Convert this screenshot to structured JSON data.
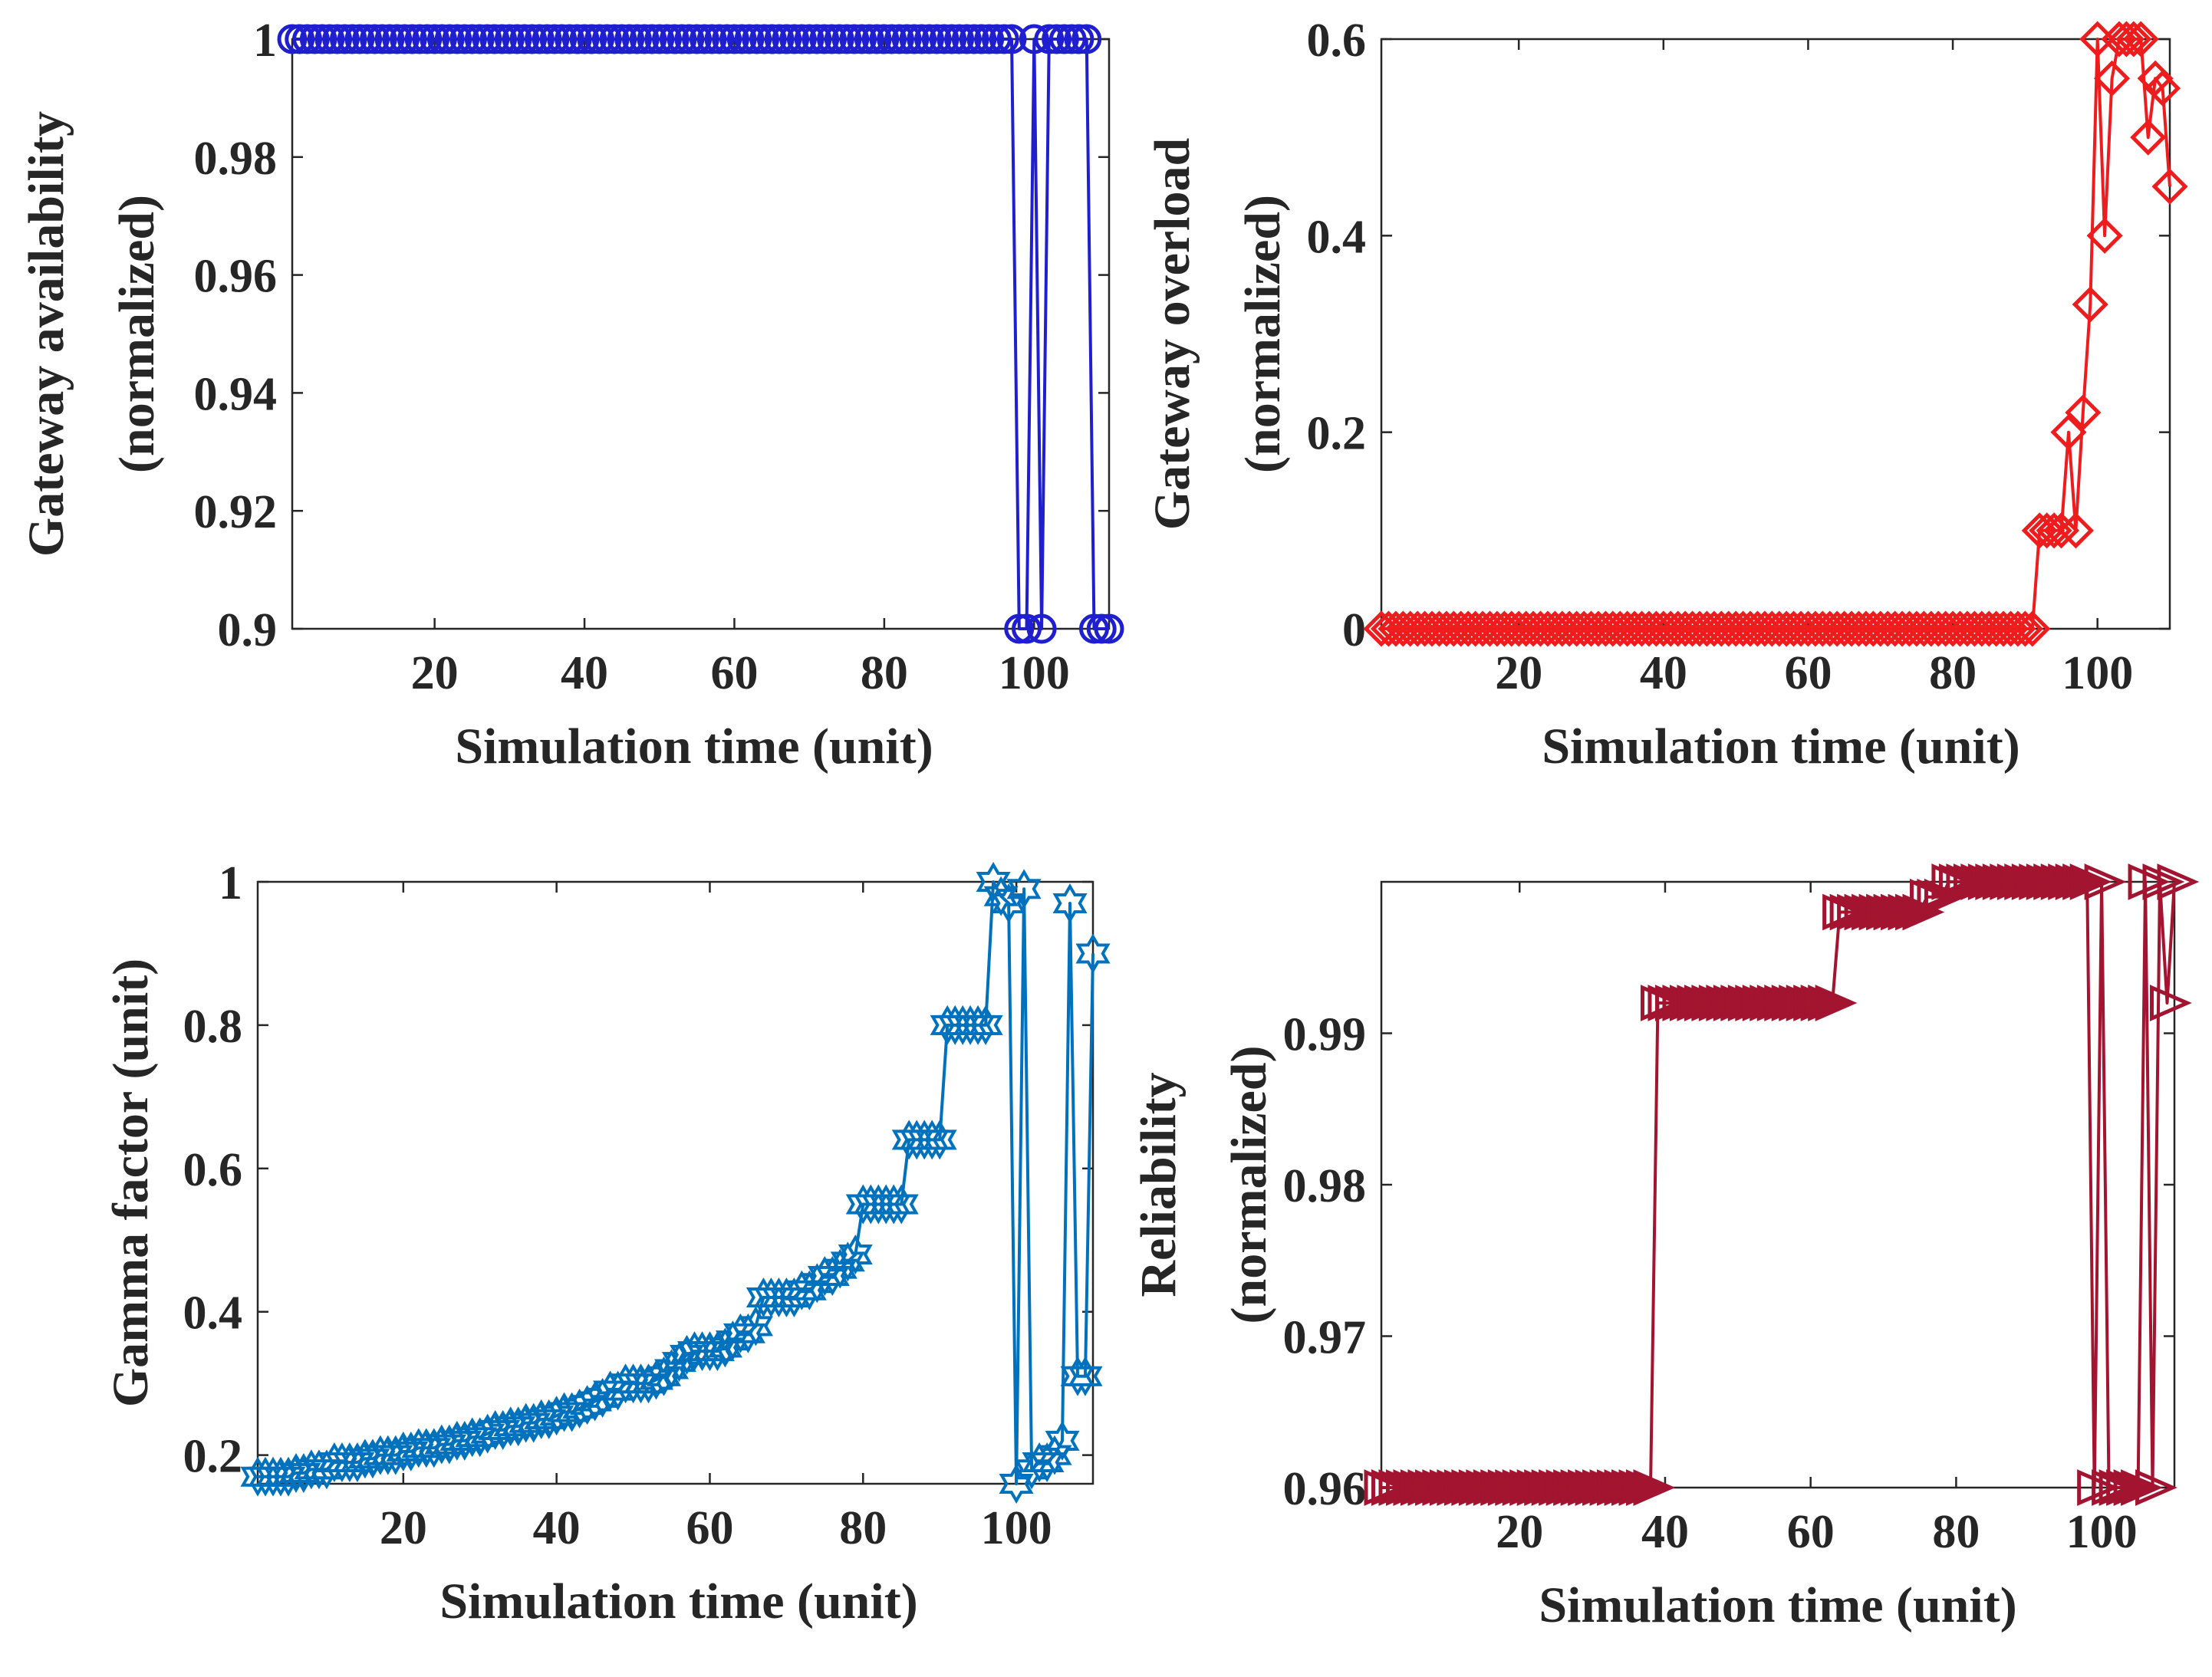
{
  "chart_data": [
    {
      "type": "line",
      "marker": "circle",
      "xlabel": "Simulation time (unit)",
      "ylabel": [
        "Gateway availability",
        "(normalized)"
      ],
      "xlim": [
        1,
        110
      ],
      "ylim": [
        0.9,
        1.0
      ],
      "xticks": [
        20,
        40,
        60,
        80,
        100
      ],
      "xtick_labels": [
        "20",
        "40",
        "60",
        "80",
        "100"
      ],
      "yticks": [
        0.9,
        0.92,
        0.94,
        0.96,
        0.98,
        1.0
      ],
      "ytick_labels": [
        "0.9",
        "0.92",
        "0.94",
        "0.96",
        "0.98",
        "1"
      ],
      "grid": false,
      "series": [
        {
          "color": "#1f1fcf",
          "x": [
            1,
            2,
            3,
            4,
            5,
            6,
            7,
            8,
            9,
            10,
            11,
            12,
            13,
            14,
            15,
            16,
            17,
            18,
            19,
            20,
            21,
            22,
            23,
            24,
            25,
            26,
            27,
            28,
            29,
            30,
            31,
            32,
            33,
            34,
            35,
            36,
            37,
            38,
            39,
            40,
            41,
            42,
            43,
            44,
            45,
            46,
            47,
            48,
            49,
            50,
            51,
            52,
            53,
            54,
            55,
            56,
            57,
            58,
            59,
            60,
            61,
            62,
            63,
            64,
            65,
            66,
            67,
            68,
            69,
            70,
            71,
            72,
            73,
            74,
            75,
            76,
            77,
            78,
            79,
            80,
            81,
            82,
            83,
            84,
            85,
            86,
            87,
            88,
            89,
            90,
            91,
            92,
            93,
            94,
            95,
            96,
            97,
            98,
            99,
            100,
            101,
            102,
            103,
            104,
            105,
            106,
            107,
            108,
            109,
            110
          ],
          "y": [
            1,
            1,
            1,
            1,
            1,
            1,
            1,
            1,
            1,
            1,
            1,
            1,
            1,
            1,
            1,
            1,
            1,
            1,
            1,
            1,
            1,
            1,
            1,
            1,
            1,
            1,
            1,
            1,
            1,
            1,
            1,
            1,
            1,
            1,
            1,
            1,
            1,
            1,
            1,
            1,
            1,
            1,
            1,
            1,
            1,
            1,
            1,
            1,
            1,
            1,
            1,
            1,
            1,
            1,
            1,
            1,
            1,
            1,
            1,
            1,
            1,
            1,
            1,
            1,
            1,
            1,
            1,
            1,
            1,
            1,
            1,
            1,
            1,
            1,
            1,
            1,
            1,
            1,
            1,
            1,
            1,
            1,
            1,
            1,
            1,
            1,
            1,
            1,
            1,
            1,
            1,
            1,
            1,
            1,
            1,
            1,
            1,
            0.9,
            0.9,
            1,
            0.9,
            1,
            1,
            1,
            1,
            1,
            1,
            0.9,
            0.9,
            0.9
          ]
        }
      ]
    },
    {
      "type": "line",
      "marker": "diamond",
      "xlabel": "Simulation time (unit)",
      "ylabel": [
        "Gateway overload",
        "(normalized)"
      ],
      "xlim": [
        1,
        110
      ],
      "ylim": [
        0,
        0.6
      ],
      "xticks": [
        20,
        40,
        60,
        80,
        100
      ],
      "xtick_labels": [
        "20",
        "40",
        "60",
        "80",
        "100"
      ],
      "yticks": [
        0,
        0.2,
        0.4,
        0.6
      ],
      "ytick_labels": [
        "0",
        "0.2",
        "0.4",
        "0.6"
      ],
      "grid": false,
      "series": [
        {
          "color": "#ee1c1c",
          "x": [
            1,
            2,
            3,
            4,
            5,
            6,
            7,
            8,
            9,
            10,
            11,
            12,
            13,
            14,
            15,
            16,
            17,
            18,
            19,
            20,
            21,
            22,
            23,
            24,
            25,
            26,
            27,
            28,
            29,
            30,
            31,
            32,
            33,
            34,
            35,
            36,
            37,
            38,
            39,
            40,
            41,
            42,
            43,
            44,
            45,
            46,
            47,
            48,
            49,
            50,
            51,
            52,
            53,
            54,
            55,
            56,
            57,
            58,
            59,
            60,
            61,
            62,
            63,
            64,
            65,
            66,
            67,
            68,
            69,
            70,
            71,
            72,
            73,
            74,
            75,
            76,
            77,
            78,
            79,
            80,
            81,
            82,
            83,
            84,
            85,
            86,
            87,
            88,
            89,
            90,
            91,
            92,
            93,
            94,
            95,
            96,
            97,
            98,
            99,
            100,
            101,
            102,
            103,
            104,
            105,
            106,
            107,
            108,
            109,
            110
          ],
          "y": [
            0,
            0,
            0,
            0,
            0,
            0,
            0,
            0,
            0,
            0,
            0,
            0,
            0,
            0,
            0,
            0,
            0,
            0,
            0,
            0,
            0,
            0,
            0,
            0,
            0,
            0,
            0,
            0,
            0,
            0,
            0,
            0,
            0,
            0,
            0,
            0,
            0,
            0,
            0,
            0,
            0,
            0,
            0,
            0,
            0,
            0,
            0,
            0,
            0,
            0,
            0,
            0,
            0,
            0,
            0,
            0,
            0,
            0,
            0,
            0,
            0,
            0,
            0,
            0,
            0,
            0,
            0,
            0,
            0,
            0,
            0,
            0,
            0,
            0,
            0,
            0,
            0,
            0,
            0,
            0,
            0,
            0,
            0,
            0,
            0,
            0,
            0,
            0,
            0,
            0,
            0,
            0.1,
            0.1,
            0.1,
            0.1,
            0.2,
            0.1,
            0.22,
            0.33,
            0.6,
            0.4,
            0.56,
            0.6,
            0.6,
            0.6,
            0.6,
            0.5,
            0.56,
            0.55,
            0.45
          ]
        }
      ]
    },
    {
      "type": "line",
      "marker": "hexagram",
      "xlabel": "Simulation time (unit)",
      "ylabel": [
        "Gamma factor (unit)"
      ],
      "xlim": [
        1,
        110
      ],
      "ylim": [
        0.16,
        1.0
      ],
      "xticks": [
        20,
        40,
        60,
        80,
        100
      ],
      "xtick_labels": [
        "20",
        "40",
        "60",
        "80",
        "100"
      ],
      "yticks": [
        0.2,
        0.4,
        0.6,
        0.8,
        1.0
      ],
      "ytick_labels": [
        "0.2",
        "0.4",
        "0.6",
        "0.8",
        "1"
      ],
      "grid": false,
      "series": [
        {
          "color": "#0072bd",
          "x": [
            1,
            2,
            3,
            4,
            5,
            6,
            7,
            8,
            9,
            10,
            11,
            12,
            13,
            14,
            15,
            16,
            17,
            18,
            19,
            20,
            21,
            22,
            23,
            24,
            25,
            26,
            27,
            28,
            29,
            30,
            31,
            32,
            33,
            34,
            35,
            36,
            37,
            38,
            39,
            40,
            41,
            42,
            43,
            44,
            45,
            46,
            47,
            48,
            49,
            50,
            51,
            52,
            53,
            54,
            55,
            56,
            57,
            58,
            59,
            60,
            61,
            62,
            63,
            64,
            65,
            66,
            67,
            68,
            69,
            70,
            71,
            72,
            73,
            74,
            75,
            76,
            77,
            78,
            79,
            80,
            81,
            82,
            83,
            84,
            85,
            86,
            87,
            88,
            89,
            90,
            91,
            92,
            93,
            94,
            95,
            96,
            97,
            98,
            99,
            100,
            101,
            102,
            103,
            104,
            105,
            106,
            107,
            108,
            109,
            110
          ],
          "y": [
            0.17,
            0.17,
            0.17,
            0.17,
            0.17,
            0.175,
            0.175,
            0.18,
            0.18,
            0.18,
            0.19,
            0.19,
            0.19,
            0.19,
            0.195,
            0.195,
            0.2,
            0.2,
            0.2,
            0.205,
            0.205,
            0.21,
            0.21,
            0.21,
            0.215,
            0.215,
            0.22,
            0.22,
            0.225,
            0.225,
            0.23,
            0.235,
            0.235,
            0.24,
            0.24,
            0.245,
            0.245,
            0.25,
            0.25,
            0.255,
            0.26,
            0.26,
            0.265,
            0.27,
            0.275,
            0.28,
            0.29,
            0.29,
            0.3,
            0.3,
            0.3,
            0.3,
            0.305,
            0.31,
            0.32,
            0.33,
            0.34,
            0.345,
            0.345,
            0.345,
            0.345,
            0.35,
            0.36,
            0.37,
            0.37,
            0.38,
            0.42,
            0.42,
            0.42,
            0.42,
            0.42,
            0.43,
            0.43,
            0.44,
            0.45,
            0.45,
            0.46,
            0.47,
            0.48,
            0.55,
            0.55,
            0.55,
            0.55,
            0.55,
            0.55,
            0.64,
            0.64,
            0.64,
            0.64,
            0.64,
            0.8,
            0.8,
            0.8,
            0.8,
            0.8,
            0.8,
            1.0,
            0.98,
            0.97,
            0.16,
            0.99,
            0.18,
            0.19,
            0.19,
            0.2,
            0.22,
            0.97,
            0.31,
            0.31,
            0.9
          ]
        }
      ]
    },
    {
      "type": "line",
      "marker": "triangle-right",
      "xlabel": "Simulation time (unit)",
      "ylabel": [
        "Reliability",
        "(normalized)"
      ],
      "xlim": [
        1,
        110
      ],
      "ylim": [
        0.96,
        1.0
      ],
      "xticks": [
        20,
        40,
        60,
        80,
        100
      ],
      "xtick_labels": [
        "20",
        "40",
        "60",
        "80",
        "100"
      ],
      "yticks": [
        0.96,
        0.97,
        0.98,
        0.99
      ],
      "ytick_labels": [
        "0.96",
        "0.97",
        "0.98",
        "0.99"
      ],
      "grid": false,
      "series": [
        {
          "color": "#a2142f",
          "x": [
            1,
            2,
            3,
            4,
            5,
            6,
            7,
            8,
            9,
            10,
            11,
            12,
            13,
            14,
            15,
            16,
            17,
            18,
            19,
            20,
            21,
            22,
            23,
            24,
            25,
            26,
            27,
            28,
            29,
            30,
            31,
            32,
            33,
            34,
            35,
            36,
            37,
            38,
            39,
            40,
            41,
            42,
            43,
            44,
            45,
            46,
            47,
            48,
            49,
            50,
            51,
            52,
            53,
            54,
            55,
            56,
            57,
            58,
            59,
            60,
            61,
            62,
            63,
            64,
            65,
            66,
            67,
            68,
            69,
            70,
            71,
            72,
            73,
            74,
            75,
            76,
            77,
            78,
            79,
            80,
            81,
            82,
            83,
            84,
            85,
            86,
            87,
            88,
            89,
            90,
            91,
            92,
            93,
            94,
            95,
            96,
            97,
            98,
            99,
            100,
            101,
            102,
            103,
            104,
            105,
            106,
            107,
            108,
            109,
            110
          ],
          "y": [
            0.96,
            0.96,
            0.96,
            0.96,
            0.96,
            0.96,
            0.96,
            0.96,
            0.96,
            0.96,
            0.96,
            0.96,
            0.96,
            0.96,
            0.96,
            0.96,
            0.96,
            0.96,
            0.96,
            0.96,
            0.96,
            0.96,
            0.96,
            0.96,
            0.96,
            0.96,
            0.96,
            0.96,
            0.96,
            0.96,
            0.96,
            0.96,
            0.96,
            0.96,
            0.96,
            0.96,
            0.96,
            0.96,
            0.992,
            0.992,
            0.992,
            0.992,
            0.992,
            0.992,
            0.992,
            0.992,
            0.992,
            0.992,
            0.992,
            0.992,
            0.992,
            0.992,
            0.992,
            0.992,
            0.992,
            0.992,
            0.992,
            0.992,
            0.992,
            0.992,
            0.992,
            0.992,
            0.992,
            0.998,
            0.998,
            0.998,
            0.998,
            0.998,
            0.998,
            0.998,
            0.998,
            0.998,
            0.998,
            0.998,
            0.998,
            0.999,
            0.999,
            0.999,
            1.0,
            1.0,
            1.0,
            1.0,
            1.0,
            1.0,
            1.0,
            1.0,
            1.0,
            1.0,
            1.0,
            1.0,
            1.0,
            1.0,
            1.0,
            1.0,
            1.0,
            1.0,
            1.0,
            1.0,
            0.96,
            1.0,
            0.96,
            0.96,
            0.96,
            0.96,
            0.96,
            1.0,
            0.96,
            1.0,
            0.992,
            1.0
          ]
        }
      ]
    }
  ]
}
